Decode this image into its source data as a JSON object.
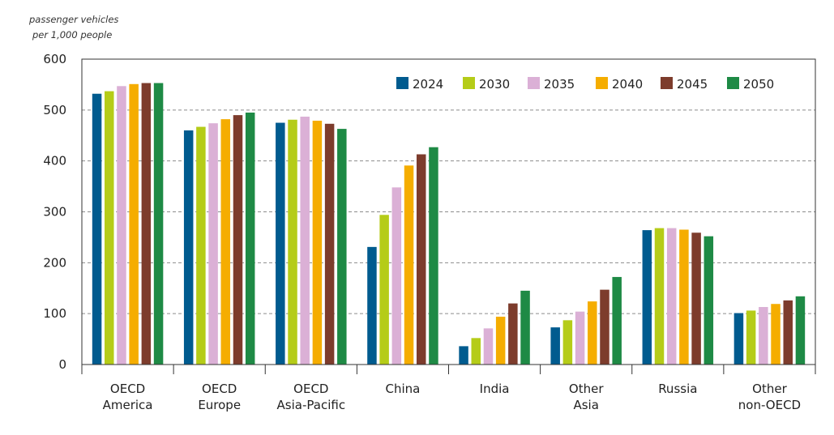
{
  "chart_data": {
    "type": "bar",
    "unit_label": [
      "passenger vehicles",
      "per 1,000 people"
    ],
    "title": "",
    "xlabel": "",
    "ylabel": "",
    "ylim": [
      0,
      600
    ],
    "yticks": [
      0,
      100,
      200,
      300,
      400,
      500,
      600
    ],
    "grid": "horizontal dashed",
    "legend_position": "top-right",
    "categories": [
      [
        "OECD",
        "America"
      ],
      [
        "OECD",
        "Europe"
      ],
      [
        "OECD",
        "Asia-Pacific"
      ],
      [
        "China"
      ],
      [
        "India"
      ],
      [
        "Other",
        "Asia"
      ],
      [
        "Russia"
      ],
      [
        "Other",
        "non-OECD"
      ]
    ],
    "series": [
      {
        "name": "2024",
        "color": "#005b8f",
        "values": [
          532,
          460,
          475,
          231,
          36,
          73,
          264,
          101
        ]
      },
      {
        "name": "2030",
        "color": "#b5cc18",
        "values": [
          537,
          467,
          481,
          294,
          52,
          87,
          268,
          106
        ]
      },
      {
        "name": "2035",
        "color": "#dbb0d6",
        "values": [
          547,
          474,
          487,
          348,
          71,
          104,
          268,
          113
        ]
      },
      {
        "name": "2040",
        "color": "#f5ad00",
        "values": [
          551,
          482,
          479,
          391,
          94,
          124,
          265,
          119
        ]
      },
      {
        "name": "2045",
        "color": "#7d3c2c",
        "values": [
          553,
          490,
          473,
          413,
          120,
          147,
          259,
          126
        ]
      },
      {
        "name": "2050",
        "color": "#1e8a45",
        "values": [
          553,
          495,
          463,
          427,
          145,
          172,
          252,
          134
        ]
      }
    ]
  }
}
